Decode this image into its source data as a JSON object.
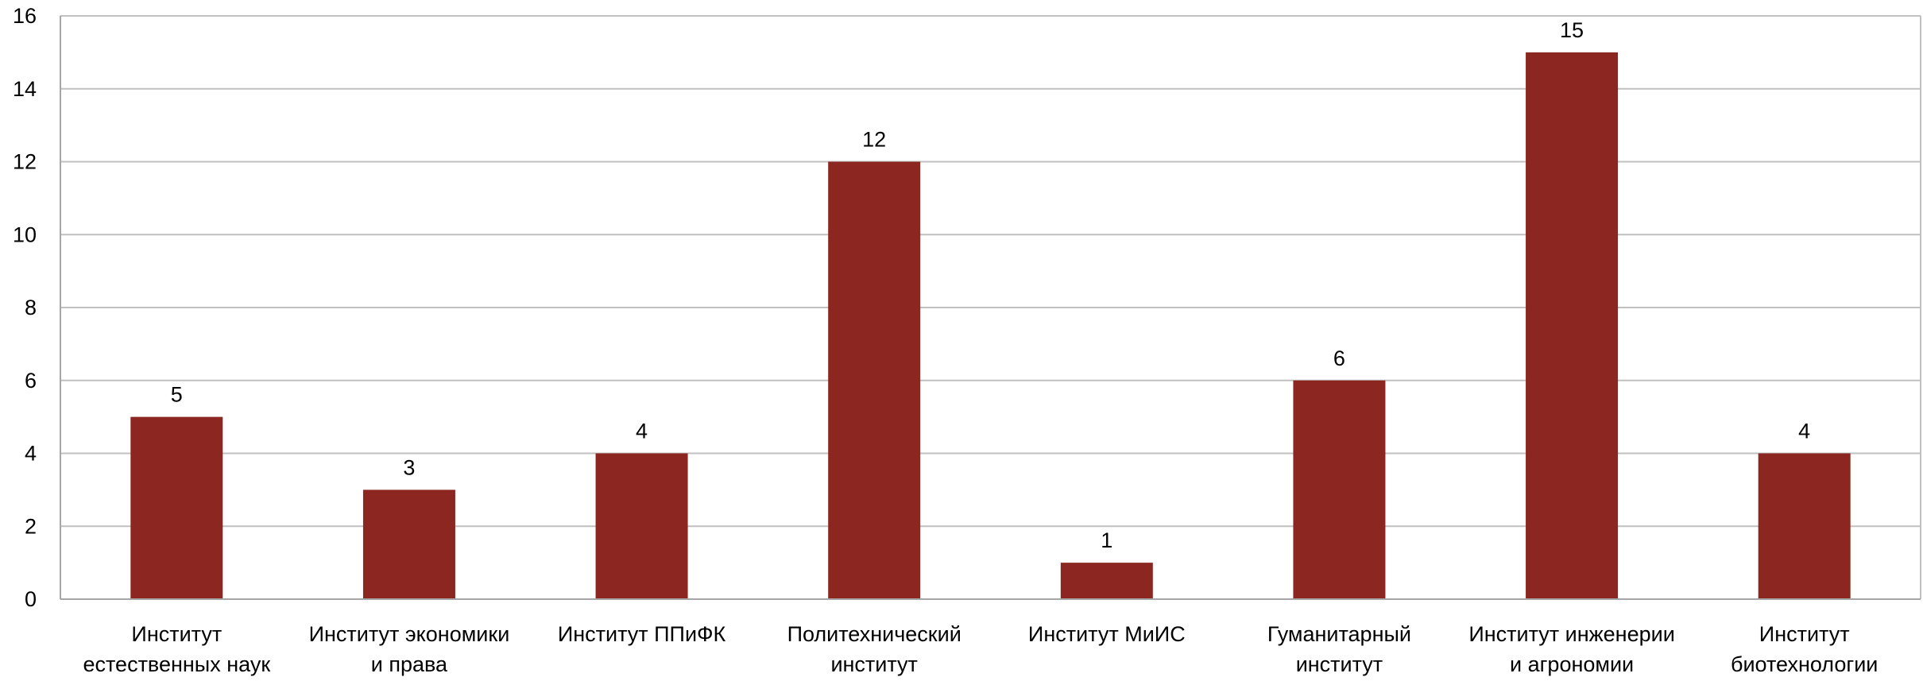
{
  "chart_data": {
    "type": "bar",
    "title": "",
    "xlabel": "",
    "ylabel": "",
    "categories": [
      [
        "Институт",
        "естественных наук"
      ],
      [
        "Институт экономики",
        "и права"
      ],
      [
        "Институт ППиФК"
      ],
      [
        "Политехнический",
        "институт"
      ],
      [
        "Институт МиИС"
      ],
      [
        "Гуманитарный",
        "институт"
      ],
      [
        "Институт инженерии",
        "и агрономии"
      ],
      [
        "Институт",
        "биотехнологии"
      ]
    ],
    "values": [
      5,
      3,
      4,
      12,
      1,
      6,
      15,
      4
    ],
    "ylim": [
      0,
      16
    ],
    "yticks": [
      "0",
      "2",
      "4",
      "6",
      "8",
      "10",
      "12",
      "14",
      "16"
    ],
    "grid": true,
    "legend": "none",
    "bar_color": "#8B2720",
    "grid_color": "#c0c0c0",
    "axis_color": "#a6a6a6"
  }
}
